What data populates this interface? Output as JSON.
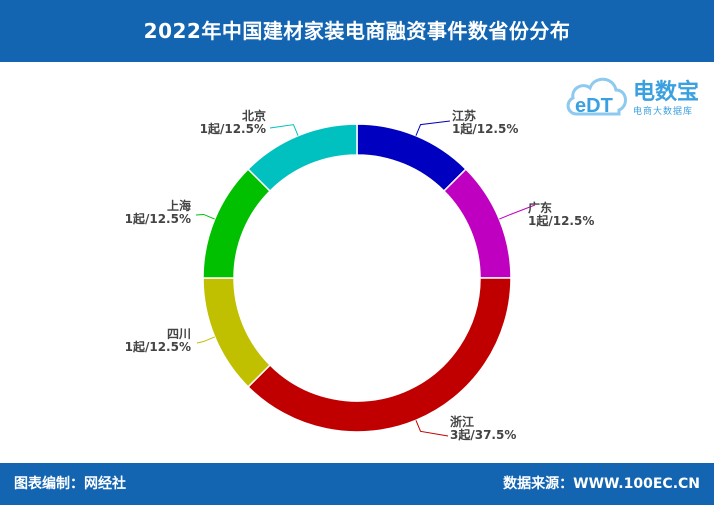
{
  "header": {
    "title": "2022年中国建材家装电商融资事件数省份分布"
  },
  "logo": {
    "name": "电数宝",
    "subtitle": "电商大数据库",
    "mark_text": "eDT"
  },
  "footer": {
    "left": "图表编制：网经社",
    "right": "数据来源：WWW.100EC.CN"
  },
  "chart_data": {
    "type": "pie",
    "variant": "donut",
    "title": "2022年中国建材家装电商融资事件数省份分布",
    "unit": "起",
    "slices": [
      {
        "name": "江苏",
        "value": 1,
        "percent": "12.5%",
        "label": "1起/12.5%",
        "color": "#0000c0"
      },
      {
        "name": "广东",
        "value": 1,
        "percent": "12.5%",
        "label": "1起/12.5%",
        "color": "#c000c0"
      },
      {
        "name": "浙江",
        "value": 3,
        "percent": "37.5%",
        "label": "3起/37.5%",
        "color": "#c00000"
      },
      {
        "name": "四川",
        "value": 1,
        "percent": "12.5%",
        "label": "1起/12.5%",
        "color": "#c0c000"
      },
      {
        "name": "上海",
        "value": 1,
        "percent": "12.5%",
        "label": "1起/12.5%",
        "color": "#00c000"
      },
      {
        "name": "北京",
        "value": 1,
        "percent": "12.5%",
        "label": "1起/12.5%",
        "color": "#00c0c0"
      }
    ]
  }
}
